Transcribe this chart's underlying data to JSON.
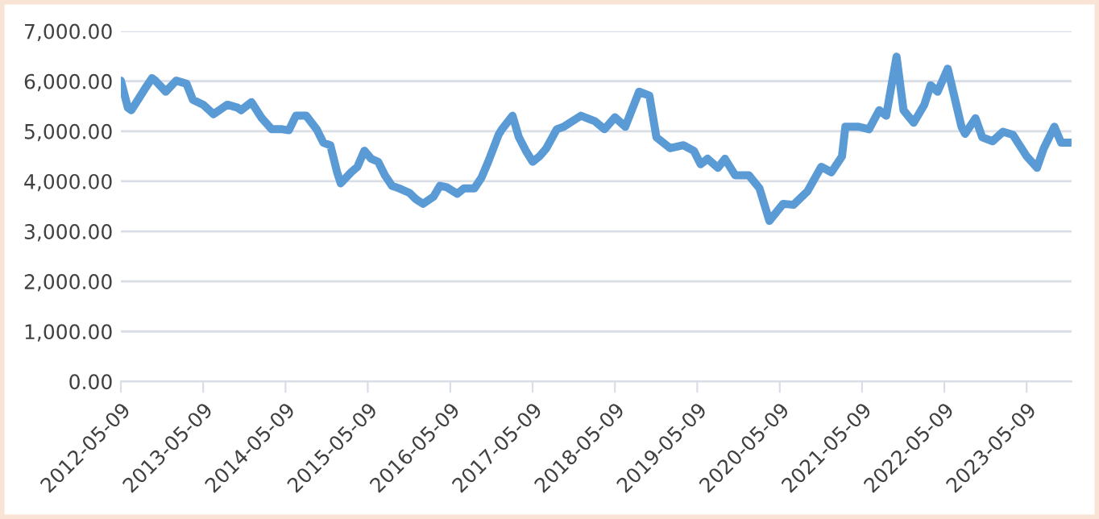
{
  "chart_data": {
    "type": "line",
    "x": [
      "2012-05-09",
      "2012-06-09",
      "2012-06-24",
      "2012-07-24",
      "2012-08-24",
      "2012-09-24",
      "2012-10-09",
      "2012-11-24",
      "2013-01-09",
      "2013-02-24",
      "2013-03-24",
      "2013-05-09",
      "2013-06-24",
      "2013-08-24",
      "2013-10-09",
      "2013-10-24",
      "2013-12-09",
      "2014-01-24",
      "2014-03-09",
      "2014-04-24",
      "2014-05-24",
      "2014-06-24",
      "2014-08-09",
      "2014-09-24",
      "2014-10-24",
      "2014-11-24",
      "2014-12-24",
      "2015-01-09",
      "2015-02-24",
      "2015-03-24",
      "2015-04-24",
      "2015-05-24",
      "2015-06-24",
      "2015-07-24",
      "2015-08-24",
      "2015-09-24",
      "2015-11-09",
      "2015-12-09",
      "2016-01-09",
      "2016-02-24",
      "2016-03-24",
      "2016-04-24",
      "2016-06-09",
      "2016-07-09",
      "2016-08-24",
      "2016-09-24",
      "2016-10-24",
      "2016-12-09",
      "2016-12-24",
      "2017-02-09",
      "2017-03-09",
      "2017-04-09",
      "2017-05-09",
      "2017-06-09",
      "2017-07-09",
      "2017-08-24",
      "2017-09-24",
      "2017-12-09",
      "2018-02-09",
      "2018-03-24",
      "2018-05-09",
      "2018-06-24",
      "2018-08-24",
      "2018-10-09",
      "2018-11-09",
      "2019-01-09",
      "2019-03-09",
      "2019-04-24",
      "2019-05-24",
      "2019-06-24",
      "2019-08-09",
      "2019-09-09",
      "2019-10-24",
      "2019-12-24",
      "2020-02-09",
      "2020-03-24",
      "2020-05-24",
      "2020-07-09",
      "2020-09-09",
      "2020-11-09",
      "2020-12-24",
      "2021-02-09",
      "2021-02-24",
      "2021-04-24",
      "2021-06-09",
      "2021-07-24",
      "2021-08-24",
      "2021-10-09",
      "2021-11-09",
      "2021-12-24",
      "2022-02-09",
      "2022-03-09",
      "2022-04-09",
      "2022-05-24",
      "2022-07-24",
      "2022-08-09",
      "2022-09-24",
      "2022-10-24",
      "2022-12-09",
      "2023-01-24",
      "2023-03-09",
      "2023-05-09",
      "2023-06-24",
      "2023-07-24",
      "2023-09-09",
      "2023-10-09",
      "2023-11-24"
    ],
    "series": [
      {
        "color": "#5b9bd5",
        "values": [
          6010,
          5470,
          5420,
          5630,
          5850,
          6060,
          6010,
          5790,
          6010,
          5950,
          5630,
          5530,
          5340,
          5530,
          5470,
          5420,
          5580,
          5260,
          5040,
          5040,
          5020,
          5310,
          5310,
          5040,
          4770,
          4720,
          4180,
          3960,
          4180,
          4290,
          4610,
          4450,
          4390,
          4120,
          3910,
          3860,
          3770,
          3640,
          3550,
          3690,
          3910,
          3880,
          3750,
          3860,
          3860,
          4070,
          4390,
          4930,
          5040,
          5310,
          4880,
          4610,
          4390,
          4500,
          4660,
          5040,
          5090,
          5310,
          5200,
          5040,
          5280,
          5090,
          5790,
          5710,
          4880,
          4660,
          4720,
          4610,
          4340,
          4450,
          4270,
          4450,
          4120,
          4120,
          3860,
          3210,
          3550,
          3530,
          3800,
          4290,
          4180,
          4500,
          5090,
          5090,
          5040,
          5420,
          5310,
          6490,
          5420,
          5170,
          5530,
          5920,
          5790,
          6250,
          5090,
          4950,
          5260,
          4880,
          4800,
          4990,
          4930,
          4500,
          4270,
          4660,
          5090,
          4770,
          4770
        ]
      }
    ],
    "xlim": [
      "2012-05-09",
      "2023-11-24"
    ],
    "xticks": [
      "2012-05-09",
      "2013-05-09",
      "2014-05-09",
      "2015-05-09",
      "2016-05-09",
      "2017-05-09",
      "2018-05-09",
      "2019-05-09",
      "2020-05-09",
      "2021-05-09",
      "2022-05-09",
      "2023-05-09"
    ],
    "ylim": [
      0,
      7000
    ],
    "yticks": [
      {
        "value": 0,
        "label": "0.00"
      },
      {
        "value": 1000,
        "label": "1,000.00"
      },
      {
        "value": 2000,
        "label": "2,000.00"
      },
      {
        "value": 3000,
        "label": "3,000.00"
      },
      {
        "value": 4000,
        "label": "4,000.00"
      },
      {
        "value": 5000,
        "label": "5,000.00"
      },
      {
        "value": 6000,
        "label": "6,000.00"
      },
      {
        "value": 7000,
        "label": "7,000.00"
      }
    ],
    "grid": "y",
    "marker": "none",
    "line_style": "solid"
  }
}
